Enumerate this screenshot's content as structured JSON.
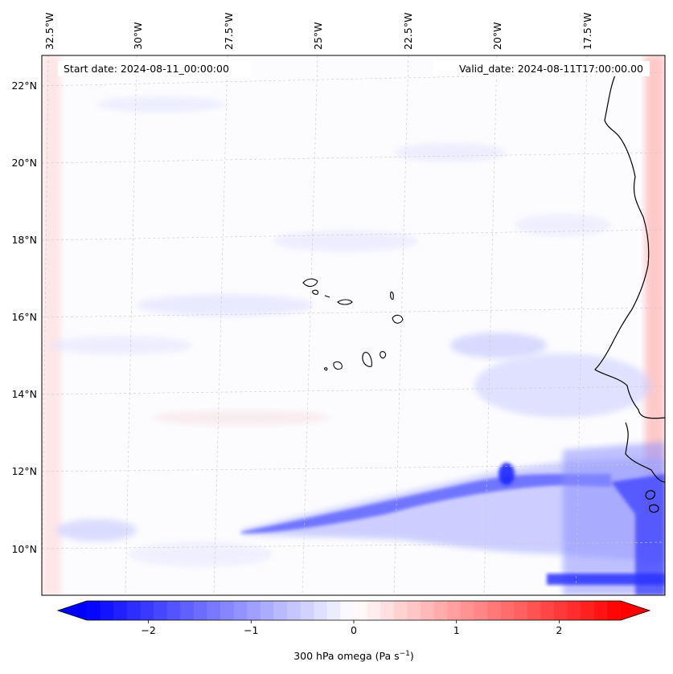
{
  "map": {
    "annotations": {
      "start": "Start date: 2024-08-11_00:00:00",
      "valid": "Valid_date: 2024-08-11T17:00:00.00"
    },
    "lon_labels": [
      "32.5°W",
      "30°W",
      "27.5°W",
      "25°W",
      "22.5°W",
      "20°W",
      "17.5°W"
    ],
    "lat_labels": [
      "22°N",
      "20°N",
      "18°N",
      "16°N",
      "14°N",
      "12°N",
      "10°N"
    ],
    "field": {
      "variable": "300 hPa omega",
      "vmin": -2.6,
      "vmax": 2.6,
      "features": [
        "equatorial ascent band (blue) along ~10.5–12°N",
        "strong ascent near West African coast",
        "weak positive (red) noise over ocean"
      ]
    },
    "land": [
      "West African coastline",
      "Cape Verde Islands"
    ]
  },
  "colorbar": {
    "ticks": [
      "−2",
      "−1",
      "0",
      "1",
      "2"
    ],
    "tick_values": [
      -2,
      -1,
      0,
      1,
      2
    ],
    "label": "300 hPa omega (Pa s",
    "label_sup": "−1",
    "label_close": ")",
    "colors": {
      "min": "#0000ff",
      "mid": "#ffffff",
      "max": "#ff0000"
    }
  }
}
